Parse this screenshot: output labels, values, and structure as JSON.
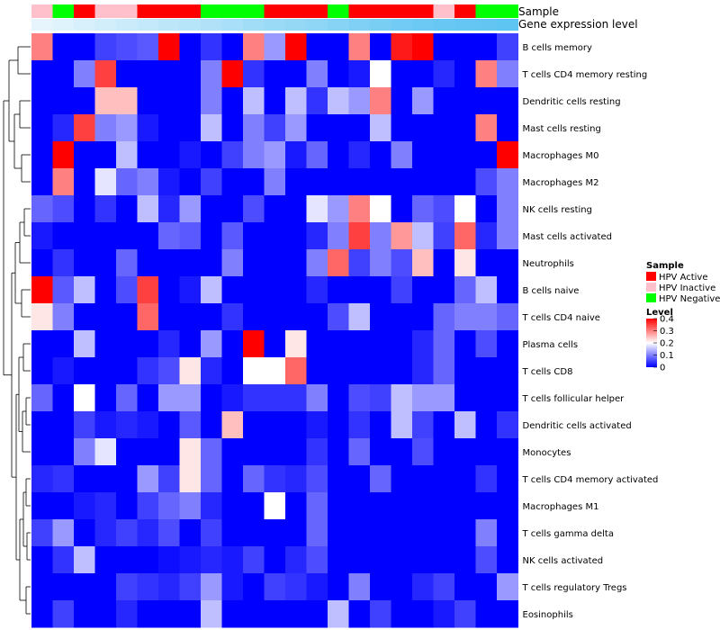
{
  "chart_data": {
    "type": "heatmap",
    "annotation_labels": [
      "Sample",
      "Gene expression level"
    ],
    "sample_track": [
      "Inactive",
      "Negative",
      "Active",
      "Inactive",
      "Inactive",
      "Active",
      "Active",
      "Active",
      "Negative",
      "Negative",
      "Negative",
      "Active",
      "Active",
      "Active",
      "Negative",
      "Active",
      "Active",
      "Active",
      "Active",
      "Inactive",
      "Active",
      "Negative",
      "Negative"
    ],
    "expression_track": [
      0.0,
      0.05,
      0.1,
      0.15,
      0.2,
      0.25,
      0.3,
      0.35,
      0.4,
      0.45,
      0.5,
      0.55,
      0.6,
      0.65,
      0.7,
      0.75,
      0.8,
      0.85,
      0.9,
      0.92,
      0.95,
      0.97,
      1.0
    ],
    "rows": [
      "B cells memory",
      "T cells CD4 memory resting",
      "Dendritic cells resting",
      "Mast cells resting",
      "Macrophages M0",
      "Macrophages M2",
      "NK cells resting",
      "Mast cells activated",
      "Neutrophils",
      "B cells naive",
      "T cells CD4 naive",
      "Plasma cells",
      "T cells CD8",
      "T cells follicular helper",
      "Dendritic cells activated",
      "Monocytes",
      "T cells CD4 memory activated",
      "Macrophages M1",
      "T cells gamma delta",
      "NK cells activated",
      "T cells regulatory  Tregs",
      "Eosinophils"
    ],
    "values": [
      [
        0.3,
        0,
        0,
        0.05,
        0.06,
        0.07,
        0.4,
        0,
        0.04,
        0,
        0.3,
        0.12,
        0.4,
        0,
        0,
        0.3,
        0,
        0.38,
        0.4,
        0,
        0,
        0,
        0.05
      ],
      [
        0,
        0,
        0.1,
        0.35,
        0,
        0,
        0,
        0,
        0.1,
        0.4,
        0.04,
        0,
        0,
        0.1,
        0,
        0.02,
        0.2,
        0,
        0,
        0.03,
        0,
        0.3,
        0.1
      ],
      [
        0,
        0,
        0,
        0.25,
        0.25,
        0,
        0,
        0,
        0.1,
        0,
        0.15,
        0,
        0.15,
        0.04,
        0.15,
        0.12,
        0.3,
        0,
        0.12,
        0,
        0,
        0,
        0
      ],
      [
        0,
        0.03,
        0.35,
        0.1,
        0.12,
        0.02,
        0,
        0,
        0.15,
        0,
        0.1,
        0.05,
        0.12,
        0,
        0,
        0,
        0.15,
        0,
        0,
        0,
        0,
        0.3,
        0
      ],
      [
        0,
        0.4,
        0,
        0,
        0.15,
        0,
        0,
        0.02,
        0,
        0.05,
        0.1,
        0.12,
        0.02,
        0.08,
        0,
        0.03,
        0,
        0.1,
        0,
        0,
        0,
        0,
        0.4
      ],
      [
        0,
        0.3,
        0,
        0.18,
        0.08,
        0.1,
        0.02,
        0,
        0.05,
        0,
        0,
        0.1,
        0,
        0,
        0,
        0,
        0,
        0,
        0,
        0,
        0,
        0.06,
        0.1
      ],
      [
        0.08,
        0.06,
        0,
        0.04,
        0,
        0.15,
        0.03,
        0.12,
        0,
        0,
        0.06,
        0,
        0,
        0.18,
        0.12,
        0.3,
        0.2,
        0,
        0.08,
        0.06,
        0.2,
        0,
        0.1
      ],
      [
        0.02,
        0,
        0,
        0,
        0,
        0,
        0.08,
        0.07,
        0,
        0.07,
        0,
        0,
        0,
        0.03,
        0.1,
        0.35,
        0.1,
        0.28,
        0.15,
        0.05,
        0.32,
        0.03,
        0.1
      ],
      [
        0,
        0.04,
        0,
        0,
        0.08,
        0,
        0,
        0,
        0,
        0.1,
        0,
        0,
        0,
        0.1,
        0.32,
        0.05,
        0.1,
        0.06,
        0.25,
        0,
        0.22,
        0,
        0
      ],
      [
        0.4,
        0.07,
        0.15,
        0,
        0.06,
        0.35,
        0,
        0.02,
        0.15,
        0,
        0,
        0,
        0,
        0.03,
        0,
        0,
        0,
        0.05,
        0,
        0,
        0.08,
        0.15,
        0
      ],
      [
        0.22,
        0.1,
        0,
        0,
        0,
        0.32,
        0,
        0,
        0,
        0.04,
        0,
        0,
        0,
        0,
        0.06,
        0.15,
        0,
        0,
        0,
        0.08,
        0.1,
        0.1,
        0.08
      ],
      [
        0,
        0,
        0.15,
        0,
        0,
        0,
        0.03,
        0,
        0.12,
        0,
        0.4,
        0,
        0.22,
        0,
        0,
        0,
        0,
        0,
        0.03,
        0.08,
        0,
        0.06,
        0
      ],
      [
        0,
        0.02,
        0,
        0,
        0,
        0.04,
        0.06,
        0.22,
        0.03,
        0,
        0.2,
        0.2,
        0.32,
        0,
        0,
        0,
        0,
        0,
        0.03,
        0.08,
        0,
        0,
        0
      ],
      [
        0.08,
        0,
        0.2,
        0,
        0.08,
        0,
        0.12,
        0.12,
        0,
        0.02,
        0.04,
        0.04,
        0.04,
        0.1,
        0,
        0.06,
        0.05,
        0.15,
        0.12,
        0.12,
        0,
        0,
        0
      ],
      [
        0,
        0,
        0.05,
        0.02,
        0.03,
        0.02,
        0,
        0.07,
        0,
        0.25,
        0,
        0,
        0,
        0.02,
        0,
        0.04,
        0,
        0.15,
        0.05,
        0,
        0.15,
        0,
        0.04
      ],
      [
        0,
        0,
        0.1,
        0.18,
        0,
        0,
        0,
        0.22,
        0.08,
        0,
        0,
        0,
        0,
        0.04,
        0,
        0.08,
        0,
        0,
        0.06,
        0,
        0,
        0,
        0
      ],
      [
        0.03,
        0.04,
        0,
        0,
        0,
        0.12,
        0.05,
        0.22,
        0.08,
        0,
        0.08,
        0.04,
        0.03,
        0.06,
        0,
        0,
        0.08,
        0,
        0,
        0,
        0,
        0.04,
        0
      ],
      [
        0,
        0,
        0.02,
        0.03,
        0,
        0.05,
        0.08,
        0.1,
        0.03,
        0,
        0,
        0.2,
        0,
        0.08,
        0,
        0,
        0,
        0,
        0,
        0,
        0,
        0,
        0
      ],
      [
        0.05,
        0.12,
        0,
        0.03,
        0.05,
        0.03,
        0.06,
        0,
        0.05,
        0,
        0,
        0,
        0,
        0.08,
        0,
        0,
        0,
        0,
        0,
        0,
        0,
        0.1,
        0
      ],
      [
        0,
        0.04,
        0.15,
        0,
        0,
        0,
        0.01,
        0.02,
        0.03,
        0.02,
        0.05,
        0,
        0.03,
        0.06,
        0,
        0,
        0,
        0,
        0,
        0,
        0,
        0.06,
        0
      ],
      [
        0,
        0,
        0,
        0,
        0.05,
        0.04,
        0.03,
        0.05,
        0.12,
        0.02,
        0,
        0.05,
        0.04,
        0.02,
        0,
        0.1,
        0,
        0,
        0.03,
        0.05,
        0,
        0,
        0.12
      ],
      [
        0,
        0.05,
        0,
        0,
        0.03,
        0,
        0,
        0,
        0.15,
        0,
        0,
        0,
        0,
        0,
        0.15,
        0,
        0.05,
        0,
        0,
        0.02,
        0.05,
        0,
        0
      ]
    ],
    "legend": {
      "sample_title": "Sample",
      "sample_entries": [
        {
          "key": "Active",
          "label": "HPV Active",
          "color": "#ff0000"
        },
        {
          "key": "Inactive",
          "label": "HPV Inactive",
          "color": "#ffc0cb"
        },
        {
          "key": "Negative",
          "label": "HPV Negative",
          "color": "#00ff00"
        }
      ],
      "level_title": "Level",
      "level_ticks": [
        0.4,
        0.3,
        0.2,
        0.1,
        0
      ],
      "level_range": [
        0,
        0.4
      ]
    },
    "colors": {
      "low": "#0000ff",
      "mid": "#ffffff",
      "high": "#ff0000",
      "expr_low": "#e6f5fc",
      "expr_high": "#5ec4f2",
      "dendrogram": "#000000"
    }
  }
}
